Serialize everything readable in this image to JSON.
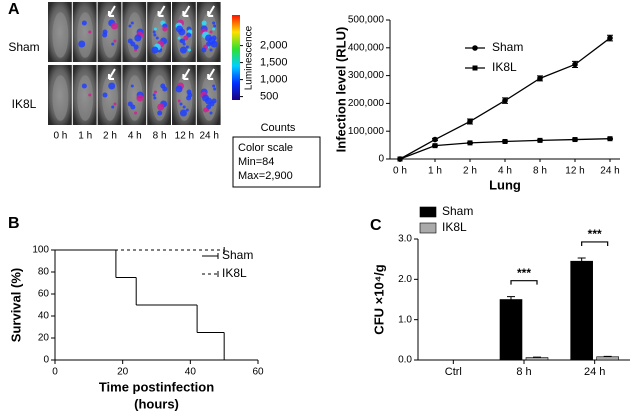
{
  "panels": [
    "A",
    "B",
    "C"
  ],
  "imaging": {
    "rows": [
      "Sham",
      "IK8L"
    ],
    "times": [
      "0 h",
      "1 h",
      "2 h",
      "4 h",
      "8 h",
      "12 h",
      "24 h"
    ],
    "colorbar": {
      "title": "Luminescence",
      "lim": [
        400,
        2900
      ],
      "ticks": [
        {
          "value": 2000,
          "label": "2,000"
        },
        {
          "value": 1500,
          "label": "1,500"
        },
        {
          "value": 1000,
          "label": "1,000"
        },
        500
      ]
    },
    "counts": "Counts",
    "scale_box": [
      "Color scale",
      "Min=84",
      "Max=2,900"
    ]
  },
  "chart_data": [
    {
      "type": "line",
      "xlabel": "Lung",
      "ylabel": "Infection level (RLU)",
      "categories": [
        "0 h",
        "1 h",
        "2 h",
        "4 h",
        "8 h",
        "12 h",
        "24 h"
      ],
      "ylim": [
        0,
        500000
      ],
      "yticks": [
        0,
        {
          "value": 100000,
          "label": "100,000"
        },
        {
          "value": 200000,
          "label": "200,000"
        },
        {
          "value": 300000,
          "label": "300,000"
        },
        {
          "value": 400000,
          "label": "400,000"
        },
        {
          "value": 500000,
          "label": "500,000"
        }
      ],
      "legend": "upper center",
      "series": [
        {
          "name": "Sham",
          "color": "#000000",
          "marker": "circle",
          "values": [
            0,
            70000,
            135000,
            210000,
            290000,
            340000,
            435000
          ],
          "errors": [
            0,
            4000,
            9000,
            10000,
            9000,
            11000,
            10000
          ]
        },
        {
          "name": "IK8L",
          "color": "#000000",
          "marker": "square",
          "values": [
            0,
            48000,
            58000,
            63000,
            67000,
            70000,
            73000
          ],
          "errors": [
            0,
            2000,
            2000,
            2000,
            2000,
            2000,
            2000
          ]
        }
      ]
    },
    {
      "type": "step",
      "xlabel": [
        "Time postinfection",
        "(hours)"
      ],
      "ylabel": "Survival (%)",
      "xlim": [
        0,
        60
      ],
      "xticks": [
        0,
        20,
        40,
        60
      ],
      "ylim": [
        0,
        100
      ],
      "yticks": [
        0,
        20,
        40,
        60,
        80,
        100
      ],
      "legend": "right",
      "series": [
        {
          "name": "Sham",
          "color": "#000000",
          "dashed": false,
          "x": [
            0,
            18,
            24,
            42,
            50
          ],
          "values": [
            100,
            75,
            50,
            25,
            0
          ]
        },
        {
          "name": "IK8L",
          "color": "#000000",
          "dashed": true,
          "x": [
            0,
            50
          ],
          "values": [
            100,
            100
          ]
        }
      ]
    },
    {
      "type": "bar",
      "ylabel": "CFU ×10⁴/g",
      "categories": [
        "Ctrl",
        "8 h",
        "24 h"
      ],
      "ylim": [
        0,
        3
      ],
      "yticks": [
        {
          "value": 0,
          "label": "0.0"
        },
        {
          "value": 1,
          "label": "1.0"
        },
        {
          "value": 2,
          "label": "2.0"
        },
        {
          "value": 3,
          "label": "3.0"
        }
      ],
      "legend": "upper left",
      "series": [
        {
          "name": "Sham",
          "color": "#000000",
          "values": [
            0,
            1.5,
            2.45
          ],
          "errors": [
            0,
            0.07,
            0.08
          ]
        },
        {
          "name": "IK8L",
          "color": "#aaaaaa",
          "values": [
            0,
            0.06,
            0.08
          ],
          "errors": [
            0,
            0.01,
            0.01
          ]
        }
      ],
      "annotations": [
        {
          "text": "***",
          "category": "8 h"
        },
        {
          "text": "***",
          "category": "24 h"
        }
      ]
    }
  ]
}
